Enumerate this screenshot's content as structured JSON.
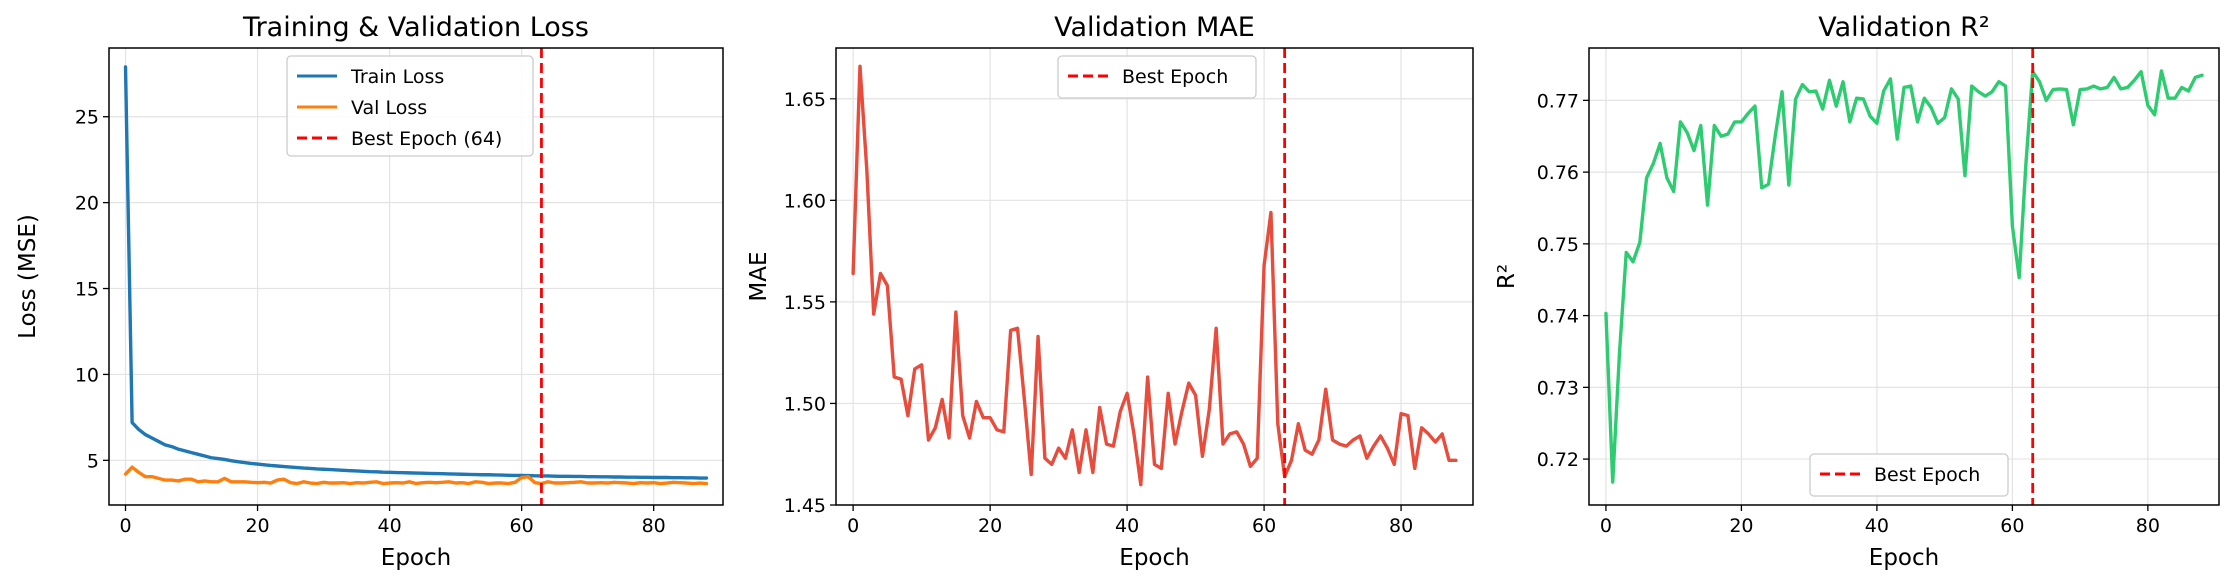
{
  "colors": {
    "train": "#1f77b4",
    "val": "#ff7f0e",
    "best": "#ff0000",
    "mae": "#e74c3c",
    "r2": "#2ecc71"
  },
  "chart_data": [
    {
      "type": "line",
      "title": "Training & Validation Loss",
      "xlabel": "Epoch",
      "ylabel": "Loss (MSE)",
      "xlim": [
        -2.5,
        90.5
      ],
      "ylim": [
        2.4,
        29
      ],
      "xticks": [
        0,
        20,
        40,
        60,
        80
      ],
      "yticks": [
        5,
        10,
        15,
        20,
        25
      ],
      "ytick_labels": [
        "5",
        "10",
        "15",
        "20",
        "25"
      ],
      "legend_position": "upper-center",
      "vline": {
        "x": 63,
        "label": "Best Epoch (64)"
      },
      "series": [
        {
          "name": "Train Loss",
          "color_key": "train",
          "x": [
            0,
            1,
            2,
            3,
            4,
            5,
            6,
            7,
            8,
            9,
            10,
            11,
            12,
            13,
            14,
            15,
            16,
            17,
            18,
            19,
            20,
            21,
            22,
            23,
            24,
            25,
            26,
            27,
            28,
            29,
            30,
            31,
            32,
            33,
            34,
            35,
            36,
            37,
            38,
            39,
            40,
            41,
            42,
            43,
            44,
            45,
            46,
            47,
            48,
            49,
            50,
            51,
            52,
            53,
            54,
            55,
            56,
            57,
            58,
            59,
            60,
            61,
            62,
            63,
            64,
            65,
            66,
            67,
            68,
            69,
            70,
            71,
            72,
            73,
            74,
            75,
            76,
            77,
            78,
            79,
            80,
            81,
            82,
            83,
            84,
            85,
            86,
            87,
            88
          ],
          "values": [
            27.9,
            7.2,
            6.8,
            6.5,
            6.3,
            6.1,
            5.9,
            5.8,
            5.65,
            5.55,
            5.45,
            5.35,
            5.25,
            5.15,
            5.1,
            5.05,
            4.98,
            4.92,
            4.87,
            4.82,
            4.78,
            4.74,
            4.7,
            4.67,
            4.64,
            4.61,
            4.58,
            4.55,
            4.53,
            4.5,
            4.48,
            4.46,
            4.44,
            4.42,
            4.4,
            4.38,
            4.36,
            4.34,
            4.33,
            4.31,
            4.3,
            4.29,
            4.28,
            4.27,
            4.26,
            4.25,
            4.24,
            4.23,
            4.22,
            4.21,
            4.2,
            4.19,
            4.18,
            4.17,
            4.16,
            4.16,
            4.15,
            4.14,
            4.13,
            4.12,
            4.12,
            4.11,
            4.1,
            4.09,
            4.09,
            4.08,
            4.07,
            4.07,
            4.06,
            4.06,
            4.05,
            4.05,
            4.04,
            4.04,
            4.03,
            4.03,
            4.02,
            4.02,
            4.01,
            4.01,
            4.0,
            4.0,
            4.0,
            3.99,
            3.99,
            3.98,
            3.98,
            3.97,
            3.97
          ]
        },
        {
          "name": "Val Loss",
          "color_key": "val",
          "x": [
            0,
            1,
            2,
            3,
            4,
            5,
            6,
            7,
            8,
            9,
            10,
            11,
            12,
            13,
            14,
            15,
            16,
            17,
            18,
            19,
            20,
            21,
            22,
            23,
            24,
            25,
            26,
            27,
            28,
            29,
            30,
            31,
            32,
            33,
            34,
            35,
            36,
            37,
            38,
            39,
            40,
            41,
            42,
            43,
            44,
            45,
            46,
            47,
            48,
            49,
            50,
            51,
            52,
            53,
            54,
            55,
            56,
            57,
            58,
            59,
            60,
            61,
            62,
            63,
            64,
            65,
            66,
            67,
            68,
            69,
            70,
            71,
            72,
            73,
            74,
            75,
            76,
            77,
            78,
            79,
            80,
            81,
            82,
            83,
            84,
            85,
            86,
            87,
            88
          ],
          "values": [
            4.2,
            4.6,
            4.3,
            4.05,
            4.05,
            3.95,
            3.85,
            3.85,
            3.8,
            3.9,
            3.9,
            3.75,
            3.8,
            3.75,
            3.75,
            3.95,
            3.75,
            3.75,
            3.75,
            3.72,
            3.7,
            3.72,
            3.68,
            3.85,
            3.9,
            3.7,
            3.65,
            3.75,
            3.68,
            3.65,
            3.72,
            3.68,
            3.68,
            3.7,
            3.65,
            3.7,
            3.68,
            3.72,
            3.75,
            3.65,
            3.68,
            3.7,
            3.68,
            3.75,
            3.65,
            3.7,
            3.72,
            3.7,
            3.72,
            3.75,
            3.68,
            3.7,
            3.65,
            3.75,
            3.72,
            3.65,
            3.68,
            3.68,
            3.65,
            3.72,
            4.0,
            4.05,
            3.7,
            3.65,
            3.75,
            3.68,
            3.68,
            3.7,
            3.72,
            3.75,
            3.68,
            3.68,
            3.7,
            3.68,
            3.72,
            3.7,
            3.68,
            3.65,
            3.7,
            3.68,
            3.7,
            3.65,
            3.68,
            3.72,
            3.7,
            3.68,
            3.65,
            3.68,
            3.65
          ]
        }
      ]
    },
    {
      "type": "line",
      "title": "Validation MAE",
      "xlabel": "Epoch",
      "ylabel": "MAE",
      "xlim": [
        -2.5,
        90.5
      ],
      "ylim": [
        1.45,
        1.675
      ],
      "xticks": [
        0,
        20,
        40,
        60,
        80
      ],
      "yticks": [
        1.45,
        1.5,
        1.55,
        1.6,
        1.65
      ],
      "ytick_labels": [
        "1.45",
        "1.50",
        "1.55",
        "1.60",
        "1.65"
      ],
      "legend_position": "upper-center",
      "vline": {
        "x": 63,
        "label": "Best Epoch"
      },
      "series": [
        {
          "name": "Val MAE",
          "color_key": "mae",
          "x": [
            0,
            1,
            2,
            3,
            4,
            5,
            6,
            7,
            8,
            9,
            10,
            11,
            12,
            13,
            14,
            15,
            16,
            17,
            18,
            19,
            20,
            21,
            22,
            23,
            24,
            25,
            26,
            27,
            28,
            29,
            30,
            31,
            32,
            33,
            34,
            35,
            36,
            37,
            38,
            39,
            40,
            41,
            42,
            43,
            44,
            45,
            46,
            47,
            48,
            49,
            50,
            51,
            52,
            53,
            54,
            55,
            56,
            57,
            58,
            59,
            60,
            61,
            62,
            63,
            64,
            65,
            66,
            67,
            68,
            69,
            70,
            71,
            72,
            73,
            74,
            75,
            76,
            77,
            78,
            79,
            80,
            81,
            82,
            83,
            84,
            85,
            86,
            87,
            88
          ],
          "values": [
            1.564,
            1.666,
            1.615,
            1.544,
            1.564,
            1.558,
            1.513,
            1.512,
            1.494,
            1.517,
            1.519,
            1.482,
            1.488,
            1.502,
            1.483,
            1.545,
            1.494,
            1.483,
            1.501,
            1.493,
            1.493,
            1.487,
            1.486,
            1.536,
            1.537,
            1.502,
            1.465,
            1.533,
            1.473,
            1.47,
            1.478,
            1.473,
            1.487,
            1.466,
            1.487,
            1.466,
            1.498,
            1.48,
            1.479,
            1.496,
            1.505,
            1.485,
            1.46,
            1.513,
            1.47,
            1.468,
            1.505,
            1.48,
            1.496,
            1.51,
            1.504,
            1.474,
            1.497,
            1.537,
            1.48,
            1.485,
            1.486,
            1.48,
            1.469,
            1.473,
            1.568,
            1.594,
            1.49,
            1.464,
            1.472,
            1.49,
            1.477,
            1.475,
            1.482,
            1.507,
            1.482,
            1.48,
            1.479,
            1.482,
            1.484,
            1.473,
            1.479,
            1.484,
            1.478,
            1.47,
            1.495,
            1.494,
            1.468,
            1.488,
            1.485,
            1.481,
            1.485,
            1.472,
            1.472
          ]
        }
      ]
    },
    {
      "type": "line",
      "title": "Validation R²",
      "xlabel": "Epoch",
      "ylabel": "R²",
      "xlim": [
        -2.5,
        90.5
      ],
      "ylim": [
        0.7136,
        0.7773
      ],
      "xticks": [
        0,
        20,
        40,
        60,
        80
      ],
      "yticks": [
        0.72,
        0.73,
        0.74,
        0.75,
        0.76,
        0.77
      ],
      "ytick_labels": [
        "0.72",
        "0.73",
        "0.74",
        "0.75",
        "0.76",
        "0.77"
      ],
      "legend_position": "lower-center",
      "vline": {
        "x": 63,
        "label": "Best Epoch"
      },
      "series": [
        {
          "name": "Val R²",
          "color_key": "r2",
          "x": [
            0,
            1,
            2,
            3,
            4,
            5,
            6,
            7,
            8,
            9,
            10,
            11,
            12,
            13,
            14,
            15,
            16,
            17,
            18,
            19,
            20,
            21,
            22,
            23,
            24,
            25,
            26,
            27,
            28,
            29,
            30,
            31,
            32,
            33,
            34,
            35,
            36,
            37,
            38,
            39,
            40,
            41,
            42,
            43,
            44,
            45,
            46,
            47,
            48,
            49,
            50,
            51,
            52,
            53,
            54,
            55,
            56,
            57,
            58,
            59,
            60,
            61,
            62,
            63,
            64,
            65,
            66,
            67,
            68,
            69,
            70,
            71,
            72,
            73,
            74,
            75,
            76,
            77,
            78,
            79,
            80,
            81,
            82,
            83,
            84,
            85,
            86,
            87,
            88
          ],
          "values": [
            0.7403,
            0.7168,
            0.7348,
            0.7488,
            0.7475,
            0.7502,
            0.7592,
            0.7612,
            0.764,
            0.7592,
            0.7573,
            0.767,
            0.7655,
            0.763,
            0.7665,
            0.7554,
            0.7665,
            0.765,
            0.7653,
            0.767,
            0.767,
            0.7682,
            0.7692,
            0.7578,
            0.7583,
            0.7651,
            0.7712,
            0.7582,
            0.7702,
            0.7722,
            0.7712,
            0.7713,
            0.7688,
            0.7728,
            0.7692,
            0.7726,
            0.767,
            0.7703,
            0.7702,
            0.7678,
            0.7668,
            0.7713,
            0.773,
            0.7646,
            0.7718,
            0.772,
            0.767,
            0.7703,
            0.769,
            0.7668,
            0.7676,
            0.7716,
            0.7702,
            0.7595,
            0.772,
            0.7712,
            0.7706,
            0.7712,
            0.7726,
            0.772,
            0.7525,
            0.7453,
            0.7612,
            0.774,
            0.7726,
            0.77,
            0.7715,
            0.7716,
            0.7715,
            0.7666,
            0.7715,
            0.7716,
            0.772,
            0.7716,
            0.7718,
            0.7732,
            0.7716,
            0.7718,
            0.7728,
            0.774,
            0.7693,
            0.768,
            0.7741,
            0.7703,
            0.7703,
            0.7718,
            0.7713,
            0.7732,
            0.7735
          ]
        }
      ]
    }
  ]
}
